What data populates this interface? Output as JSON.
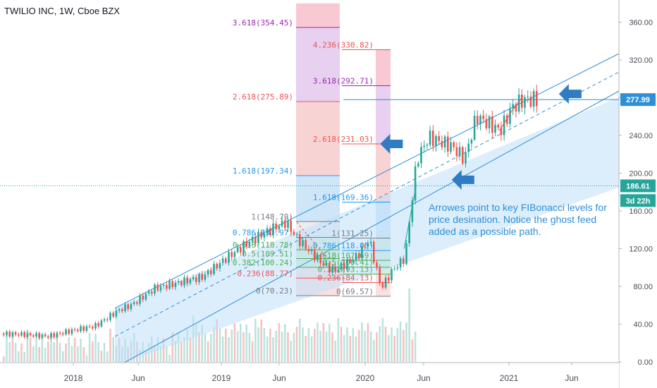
{
  "title": "TWILIO INC, 1W, Cboe BZX",
  "note": "Arrowes point to key FIBonacci levels for price desination. Notice the ghost feed added as a possible path.",
  "colors": {
    "channel": "#2f8fd6",
    "channel_fill": "#bfe0fa",
    "up": "#26a69a",
    "down": "#ef5350",
    "arrow": "#2f7cc4",
    "fib_gray": "#787b86",
    "fib_red": "#ef5350",
    "fib_blue": "#2196f3",
    "fib_green": "#4caf50",
    "fib_purple": "#9c27b0"
  },
  "chart_data": {
    "type": "candlestick",
    "y_axis": {
      "ticks": [
        "360.00",
        "320.00",
        "280.00",
        "240.00",
        "200.00",
        "160.00",
        "120.00",
        "80.00",
        "40.00",
        "0.00"
      ],
      "ylim": [
        0,
        380
      ]
    },
    "x_axis": {
      "ticks": [
        "2018",
        "Jun",
        "2019",
        "Jun",
        "2020",
        "Jun",
        "2021",
        "Jun"
      ]
    },
    "price_labels": [
      {
        "label": "277.99",
        "value": 277.99,
        "style": "last"
      },
      {
        "label": "186.61",
        "value": 186.61,
        "style": "fill"
      },
      {
        "label": "3d 22h",
        "value": 171.0,
        "style": "timer"
      }
    ],
    "horizontal_line": 277.99,
    "dotted_line": 186.61,
    "fib_extension_1": {
      "levels": [
        {
          "label": "0(70.23)",
          "value": 70.23,
          "color": "fib_gray"
        },
        {
          "label": "0.236(88.77)",
          "value": 88.77,
          "color": "fib_red"
        },
        {
          "label": "0.382(100.24)",
          "value": 100.24,
          "color": "fib_green"
        },
        {
          "label": "0.5(109.51)",
          "value": 109.51,
          "color": "fib_green"
        },
        {
          "label": "0.618(118.78)",
          "value": 118.78,
          "color": "fib_green"
        },
        {
          "label": "0.786(131.97)",
          "value": 131.97,
          "color": "fib_blue"
        },
        {
          "label": "1(148.79)",
          "value": 148.79,
          "color": "fib_gray"
        },
        {
          "label": "1.618(197.34)",
          "value": 197.34,
          "color": "fib_blue"
        },
        {
          "label": "2.618(275.89)",
          "value": 275.89,
          "color": "fib_red"
        },
        {
          "label": "3.618(354.45)",
          "value": 354.45,
          "color": "fib_purple"
        }
      ]
    },
    "fib_extension_2": {
      "levels": [
        {
          "label": "0(69.57)",
          "value": 69.57,
          "color": "fib_gray"
        },
        {
          "label": "0.236(84.13)",
          "value": 84.13,
          "color": "fib_red"
        },
        {
          "label": "0.382(93.13)",
          "value": 93.13,
          "color": "fib_green"
        },
        {
          "label": "0.5(100.41)",
          "value": 100.41,
          "color": "fib_green"
        },
        {
          "label": "0.618(107.69)",
          "value": 107.69,
          "color": "fib_green"
        },
        {
          "label": "0.786(118.05)",
          "value": 118.05,
          "color": "fib_blue"
        },
        {
          "label": "1(131.25)",
          "value": 131.25,
          "color": "fib_gray"
        },
        {
          "label": "1.618(169.36)",
          "value": 169.36,
          "color": "fib_blue"
        },
        {
          "label": "2.618(231.03)",
          "value": 231.03,
          "color": "fib_red"
        },
        {
          "label": "3.618(292.71)",
          "value": 292.71,
          "color": "fib_purple"
        },
        {
          "label": "4.236(330.82)",
          "value": 330.82,
          "color": "fib_red"
        }
      ]
    },
    "price_path": [
      [
        "2017-07",
        30
      ],
      [
        "2017-09",
        29
      ],
      [
        "2017-11",
        27
      ],
      [
        "2018-01",
        33
      ],
      [
        "2018-03",
        38
      ],
      [
        "2018-05",
        55
      ],
      [
        "2018-06",
        60
      ],
      [
        "2018-08",
        78
      ],
      [
        "2018-10",
        84
      ],
      [
        "2018-12",
        90
      ],
      [
        "2019-02",
        110
      ],
      [
        "2019-04",
        128
      ],
      [
        "2019-06",
        142
      ],
      [
        "2019-07",
        148
      ],
      [
        "2019-08",
        130
      ],
      [
        "2019-10",
        105
      ],
      [
        "2019-11",
        96
      ],
      [
        "2020-01",
        112
      ],
      [
        "2020-02",
        130
      ],
      [
        "2020-03",
        78
      ],
      [
        "2020-04",
        98
      ],
      [
        "2020-05",
        110
      ],
      [
        "2020-06",
        215
      ],
      [
        "2020-07",
        238
      ],
      [
        "2020-09",
        228
      ],
      [
        "2020-10",
        215
      ],
      [
        "2020-11",
        260
      ],
      [
        "2021-01",
        245
      ],
      [
        "2021-02",
        270
      ],
      [
        "2021-03",
        278
      ]
    ],
    "arrows": [
      {
        "name": "arrow-fib-2618",
        "date": "2020-03",
        "value": 231
      },
      {
        "name": "arrow-dotted-level",
        "date": "2020-09",
        "value": 193
      },
      {
        "name": "arrow-channel-top",
        "date": "2021-06",
        "value": 284
      }
    ]
  }
}
